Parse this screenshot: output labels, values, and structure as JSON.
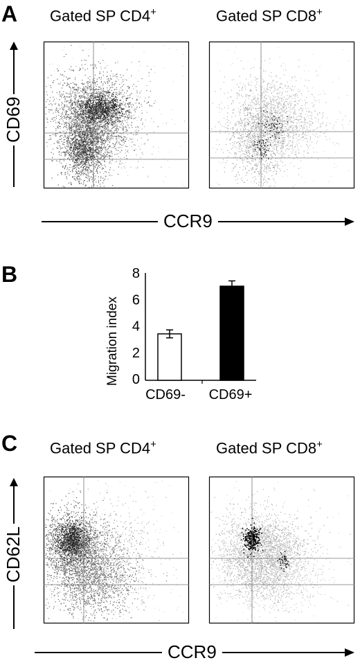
{
  "panels": {
    "A": {
      "letter": "A",
      "y_label": "CD69",
      "x_label": "CCR9",
      "plots": [
        {
          "title": "Gated SP CD4",
          "title_sup": "+"
        },
        {
          "title": "Gated SP CD8",
          "title_sup": "+"
        }
      ]
    },
    "B": {
      "letter": "B"
    },
    "C": {
      "letter": "C",
      "y_label": "CD62L",
      "x_label": "CCR9",
      "plots": [
        {
          "title": "Gated SP CD4",
          "title_sup": "+"
        },
        {
          "title": "Gated SP CD8",
          "title_sup": "+"
        }
      ]
    }
  },
  "chart_data": [
    {
      "type": "scatter",
      "panel": "A",
      "title": "Gated SP CD4+",
      "xlabel": "CCR9",
      "ylabel": "CD69",
      "grid": "quadrant gates"
    },
    {
      "type": "scatter",
      "panel": "A",
      "title": "Gated SP CD8+",
      "xlabel": "CCR9",
      "ylabel": "CD69",
      "grid": "quadrant gates"
    },
    {
      "type": "bar",
      "panel": "B",
      "categories": [
        "CD69-",
        "CD69+"
      ],
      "values": [
        3.4,
        7.0
      ],
      "errors": [
        0.3,
        0.4
      ],
      "colors": [
        "#ffffff",
        "#000000"
      ],
      "ylabel": "Migration index",
      "ylim": [
        0,
        8
      ],
      "yticks": [
        "0",
        "2",
        "4",
        "6",
        "8"
      ]
    },
    {
      "type": "scatter",
      "panel": "C",
      "title": "Gated SP CD4+",
      "xlabel": "CCR9",
      "ylabel": "CD62L",
      "grid": "quadrant gates"
    },
    {
      "type": "scatter",
      "panel": "C",
      "title": "Gated SP CD8+",
      "xlabel": "CCR9",
      "ylabel": "CD62L",
      "grid": "quadrant gates"
    }
  ]
}
